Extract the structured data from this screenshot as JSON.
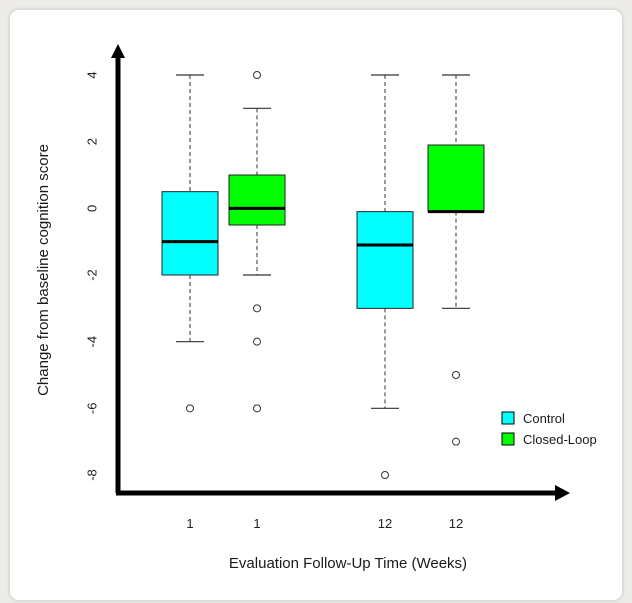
{
  "chart_data": {
    "type": "box",
    "title": "",
    "xlabel": "Evaluation Follow-Up Time (Weeks)",
    "ylabel": "Change from baseline cognition score",
    "ylim": [
      -8.5,
      4.9
    ],
    "yticks": [
      "4",
      "2",
      "0",
      "-2",
      "-4",
      "-6",
      "-8"
    ],
    "ytick_values": [
      4,
      2,
      0,
      -2,
      -4,
      -6,
      -8
    ],
    "categories": [
      "1",
      "1",
      "12",
      "12"
    ],
    "legend": {
      "position": "bottom-right",
      "entries": [
        "Control",
        "Closed-Loop"
      ]
    },
    "colors": {
      "Control": "#00ffff",
      "Closed-Loop": "#00ff00"
    },
    "boxes": [
      {
        "label": "1",
        "group": "Control",
        "whisker_low": -4,
        "q1": -2,
        "median": -1,
        "q3": 0.5,
        "whisker_high": 4,
        "outliers": [
          -6
        ]
      },
      {
        "label": "1",
        "group": "Closed-Loop",
        "whisker_low": -2,
        "q1": -0.5,
        "median": 0,
        "q3": 1,
        "whisker_high": 3,
        "outliers": [
          4,
          -3,
          -4,
          -6
        ]
      },
      {
        "label": "12",
        "group": "Control",
        "whisker_low": -6,
        "q1": -3,
        "median": -1.1,
        "q3": -0.1,
        "whisker_high": 4,
        "outliers": [
          -8
        ]
      },
      {
        "label": "12",
        "group": "Closed-Loop",
        "whisker_low": -3,
        "q1": -0.1,
        "median": -0.1,
        "q3": 1.9,
        "whisker_high": 4,
        "outliers": [
          -5,
          -7
        ]
      }
    ]
  }
}
